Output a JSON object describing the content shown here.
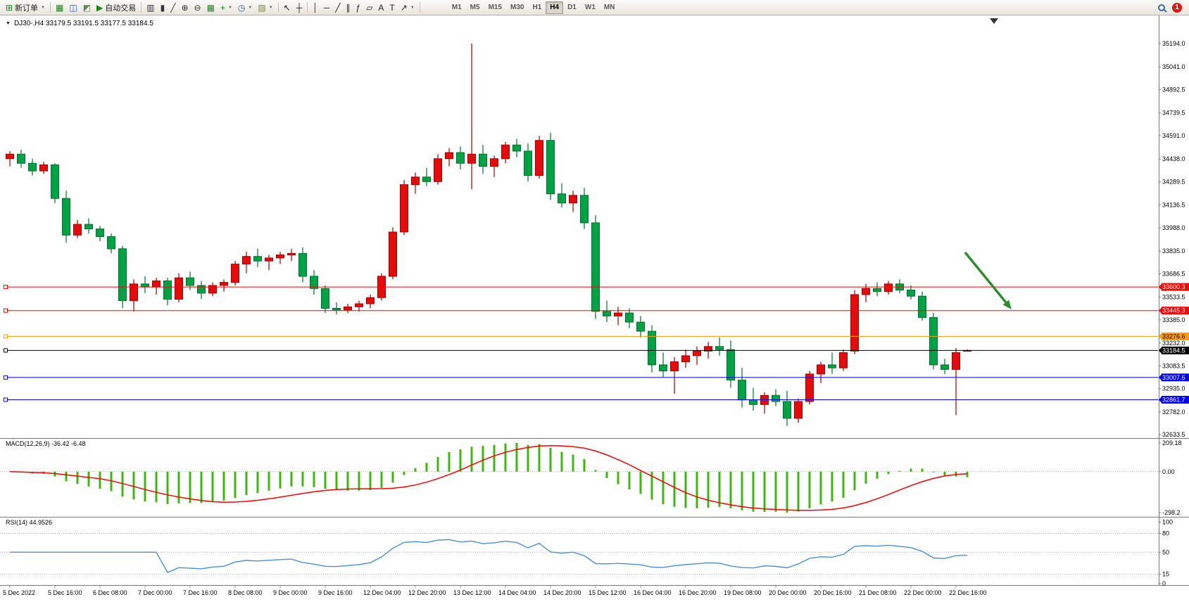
{
  "toolbar": {
    "notification_count": "1",
    "timeframes": [
      "M1",
      "M5",
      "M15",
      "M30",
      "H1",
      "H4",
      "D1",
      "W1",
      "MN"
    ],
    "active_timeframe": "H4",
    "buttons": [
      {
        "name": "new-order",
        "glyph": "⊞",
        "color": "#128a12",
        "label": "新订单",
        "caret": true
      },
      {
        "type": "sep"
      },
      {
        "name": "charts-profile",
        "glyph": "▦",
        "color": "#128a12"
      },
      {
        "name": "market-watch",
        "glyph": "◫",
        "color": "#1f5fb0"
      },
      {
        "name": "data-window",
        "glyph": "◩",
        "color": "#5a8a5a"
      },
      {
        "name": "autotrading",
        "glyph": "▶",
        "color": "#128a12",
        "label": "自动交易"
      },
      {
        "type": "sep"
      },
      {
        "name": "bar-chart",
        "glyph": "▥",
        "color": "#333333"
      },
      {
        "name": "candlestick-chart",
        "glyph": "▮",
        "color": "#333333"
      },
      {
        "name": "line-chart",
        "glyph": "╱",
        "color": "#333333"
      },
      {
        "name": "zoom-in",
        "glyph": "⊕",
        "color": "#333333"
      },
      {
        "name": "zoom-out",
        "glyph": "⊖",
        "color": "#333333"
      },
      {
        "name": "tile-windows",
        "glyph": "▦",
        "color": "#2a7d2a"
      },
      {
        "name": "indicators",
        "glyph": "+",
        "color": "#128a12",
        "caret": true
      },
      {
        "name": "periods",
        "glyph": "◷",
        "color": "#1f5fb0",
        "caret": true
      },
      {
        "name": "templates",
        "glyph": "▨",
        "color": "#7a8a4a",
        "caret": true
      },
      {
        "type": "sep"
      },
      {
        "name": "cursor",
        "glyph": "↖",
        "color": "#222222"
      },
      {
        "name": "crosshair",
        "glyph": "┼",
        "color": "#222222"
      },
      {
        "type": "sep"
      },
      {
        "name": "vertical-line",
        "glyph": "│",
        "color": "#222222"
      },
      {
        "name": "horizontal-line",
        "glyph": "─",
        "color": "#222222"
      },
      {
        "name": "trendline",
        "glyph": "╱",
        "color": "#222222"
      },
      {
        "name": "channel",
        "glyph": "∥",
        "color": "#222222"
      },
      {
        "name": "fibonacci",
        "glyph": "ƒ",
        "color": "#222222"
      },
      {
        "name": "shapes",
        "glyph": "▱",
        "color": "#222222"
      },
      {
        "name": "text",
        "glyph": "A",
        "color": "#222222"
      },
      {
        "name": "text-label",
        "glyph": "T",
        "color": "#222222"
      },
      {
        "name": "arrows",
        "glyph": "↗",
        "color": "#222222",
        "caret": true
      },
      {
        "type": "sep"
      }
    ]
  },
  "chart": {
    "title": "DJ30-,H4 33179.5 33191.5 33177.5 33184.5"
  },
  "chart_data": {
    "type": "candlestick",
    "symbol": "DJ30-",
    "period": "H4",
    "current_bar": {
      "open": "33179.5",
      "high": "33191.5",
      "low": "33177.5",
      "close": "33184.5"
    },
    "colors": {
      "bull_fill": "#e60b0b",
      "bull_stroke": "#a80000",
      "bear_fill": "#00a344",
      "bear_stroke": "#00702e"
    },
    "price_axis": [
      "35194.0",
      "35041.0",
      "34892.5",
      "34739.5",
      "34591.0",
      "34438.0",
      "34289.5",
      "34136.5",
      "33988.0",
      "33835.0",
      "33686.5",
      "33533.5",
      "33385.0",
      "33232.0",
      "33083.5",
      "32935.0",
      "32782.0",
      "32633.5"
    ],
    "time_labels": [
      "5 Dec 2022",
      "5 Dec 16:00",
      "6 Dec 08:00",
      "7 Dec 00:00",
      "7 Dec 16:00",
      "8 Dec 08:00",
      "9 Dec 00:00",
      "9 Dec 16:00",
      "12 Dec 04:00",
      "12 Dec 20:00",
      "13 Dec 12:00",
      "14 Dec 04:00",
      "14 Dec 20:00",
      "15 Dec 12:00",
      "16 Dec 04:00",
      "16 Dec 20:00",
      "19 Dec 08:00",
      "20 Dec 00:00",
      "20 Dec 16:00",
      "21 Dec 08:00",
      "22 Dec 00:00",
      "22 Dec 16:00"
    ],
    "hlines": [
      {
        "price": 33600.3,
        "label": "33600.3",
        "color": "#ff0000",
        "text": "#ffffff"
      },
      {
        "price": 33445.3,
        "label": "33445.3",
        "color": "#ff0000",
        "text": "#ffffff"
      },
      {
        "price": 33276.6,
        "label": "33276.6",
        "color": "#ff9d00",
        "text": "#000000"
      },
      {
        "price": 33184.5,
        "label": "33184.5",
        "color": "#000000",
        "text": "#ffffff"
      },
      {
        "price": 33007.6,
        "label": "33007.6",
        "color": "#0000ff",
        "text": "#ffffff"
      },
      {
        "price": 32861.7,
        "label": "32861.7",
        "color": "#0000ff",
        "text": "#ffffff"
      }
    ],
    "ohlc": [
      [
        34440,
        34490,
        34390,
        34470
      ],
      [
        34470,
        34500,
        34380,
        34410
      ],
      [
        34410,
        34440,
        34330,
        34360
      ],
      [
        34360,
        34420,
        34340,
        34400
      ],
      [
        34400,
        34410,
        34150,
        34180
      ],
      [
        34180,
        34230,
        33890,
        33940
      ],
      [
        33940,
        34040,
        33920,
        34010
      ],
      [
        34010,
        34050,
        33950,
        33980
      ],
      [
        33980,
        34000,
        33900,
        33930
      ],
      [
        33930,
        33950,
        33820,
        33850
      ],
      [
        33850,
        33870,
        33460,
        33510
      ],
      [
        33510,
        33650,
        33440,
        33620
      ],
      [
        33620,
        33670,
        33560,
        33600
      ],
      [
        33600,
        33660,
        33550,
        33640
      ],
      [
        33640,
        33660,
        33480,
        33520
      ],
      [
        33520,
        33690,
        33500,
        33660
      ],
      [
        33660,
        33700,
        33580,
        33610
      ],
      [
        33610,
        33640,
        33520,
        33560
      ],
      [
        33560,
        33630,
        33540,
        33610
      ],
      [
        33610,
        33650,
        33570,
        33630
      ],
      [
        33630,
        33770,
        33610,
        33750
      ],
      [
        33750,
        33830,
        33690,
        33800
      ],
      [
        33800,
        33850,
        33730,
        33770
      ],
      [
        33770,
        33810,
        33710,
        33790
      ],
      [
        33790,
        33830,
        33750,
        33810
      ],
      [
        33810,
        33850,
        33770,
        33820
      ],
      [
        33820,
        33860,
        33630,
        33670
      ],
      [
        33670,
        33710,
        33550,
        33590
      ],
      [
        33590,
        33610,
        33430,
        33460
      ],
      [
        33460,
        33500,
        33420,
        33450
      ],
      [
        33450,
        33490,
        33430,
        33470
      ],
      [
        33470,
        33510,
        33440,
        33490
      ],
      [
        33490,
        33550,
        33460,
        33530
      ],
      [
        33530,
        33690,
        33510,
        33670
      ],
      [
        33670,
        33990,
        33650,
        33960
      ],
      [
        33960,
        34300,
        33940,
        34270
      ],
      [
        34270,
        34350,
        34210,
        34320
      ],
      [
        34320,
        34380,
        34260,
        34290
      ],
      [
        34290,
        34470,
        34270,
        34440
      ],
      [
        34440,
        34510,
        34390,
        34480
      ],
      [
        34480,
        34520,
        34370,
        34410
      ],
      [
        34410,
        35194,
        34240,
        34470
      ],
      [
        34470,
        34530,
        34340,
        34390
      ],
      [
        34390,
        34460,
        34320,
        34440
      ],
      [
        34440,
        34550,
        34410,
        34530
      ],
      [
        34530,
        34570,
        34450,
        34490
      ],
      [
        34490,
        34540,
        34290,
        34330
      ],
      [
        34330,
        34590,
        34310,
        34560
      ],
      [
        34560,
        34610,
        34170,
        34210
      ],
      [
        34210,
        34280,
        34120,
        34150
      ],
      [
        34150,
        34230,
        34090,
        34200
      ],
      [
        34200,
        34250,
        33980,
        34020
      ],
      [
        34020,
        34070,
        33390,
        33440
      ],
      [
        33440,
        33510,
        33370,
        33410
      ],
      [
        33410,
        33470,
        33350,
        33430
      ],
      [
        33430,
        33460,
        33330,
        33370
      ],
      [
        33370,
        33410,
        33270,
        33310
      ],
      [
        33310,
        33350,
        33040,
        33090
      ],
      [
        33090,
        33170,
        33010,
        33050
      ],
      [
        33050,
        33140,
        32900,
        33110
      ],
      [
        33110,
        33190,
        33070,
        33150
      ],
      [
        33150,
        33210,
        33090,
        33180
      ],
      [
        33180,
        33240,
        33130,
        33210
      ],
      [
        33210,
        33270,
        33150,
        33190
      ],
      [
        33190,
        33250,
        32940,
        32990
      ],
      [
        32990,
        33070,
        32810,
        32860
      ],
      [
        32860,
        32940,
        32790,
        32830
      ],
      [
        32830,
        32910,
        32770,
        32890
      ],
      [
        32890,
        32930,
        32820,
        32850
      ],
      [
        32850,
        32920,
        32690,
        32740
      ],
      [
        32740,
        32870,
        32710,
        32850
      ],
      [
        32850,
        33050,
        32830,
        33030
      ],
      [
        33030,
        33110,
        32970,
        33090
      ],
      [
        33090,
        33170,
        33030,
        33070
      ],
      [
        33070,
        33190,
        33050,
        33170
      ],
      [
        33180,
        33580,
        33160,
        33550
      ],
      [
        33550,
        33620,
        33500,
        33590
      ],
      [
        33590,
        33630,
        33540,
        33570
      ],
      [
        33570,
        33640,
        33550,
        33620
      ],
      [
        33620,
        33650,
        33560,
        33580
      ],
      [
        33580,
        33610,
        33520,
        33540
      ],
      [
        33540,
        33570,
        33380,
        33400
      ],
      [
        33400,
        33430,
        33060,
        33090
      ],
      [
        33090,
        33130,
        33030,
        33060
      ],
      [
        33060,
        33200,
        32760,
        33170
      ],
      [
        33179.5,
        33191.5,
        33177.5,
        33184.5
      ]
    ],
    "macd": {
      "label": "MACD(12,26,9) -36.42 -6.48",
      "params": [
        12,
        26,
        9
      ],
      "main_value": "-36.42",
      "signal_value": "-6.48",
      "axis": [
        "209.18",
        "0.00",
        "-298.2"
      ],
      "axis_max": 209.18,
      "axis_min": -298.2,
      "histogram_color": "#3cb80c",
      "signal_color": "#ff0000"
    },
    "rsi": {
      "label": "RSI(14) 44.9526",
      "period": 14,
      "value": "44.9526",
      "axis": [
        "100",
        "80",
        "50",
        "15",
        "0"
      ],
      "levels": [
        80,
        50,
        15
      ],
      "line_color": "#4a90d9"
    },
    "annotations": {
      "arrow": {
        "from": [
          1371,
          337
        ],
        "to": [
          1437,
          418
        ],
        "color": "#2e8b2e"
      }
    }
  }
}
